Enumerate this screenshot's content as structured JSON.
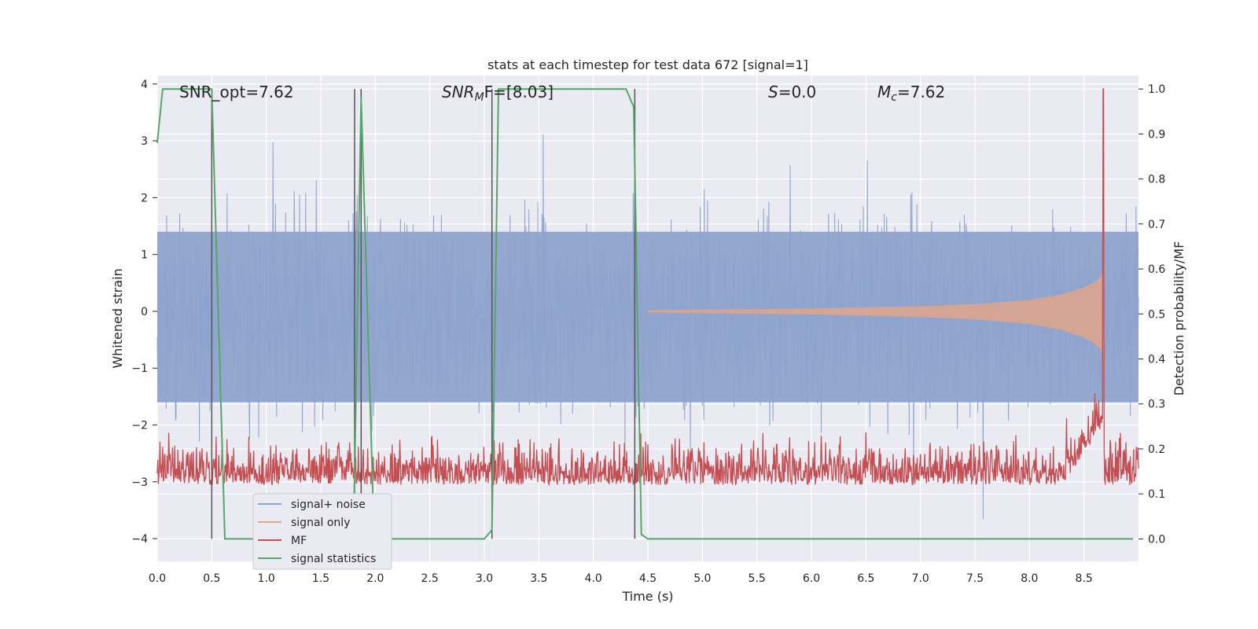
{
  "chart_data": {
    "type": "line",
    "title": "stats at each timestep for test data 672 [signal=1]",
    "xlabel": "Time (s)",
    "ylabel": "Whitened strain",
    "ylabel_right": "Detection probability/MF",
    "xlim": [
      0.0,
      9.0
    ],
    "ylim": [
      -4.4,
      4.15
    ],
    "ylim_right": [
      -0.05,
      1.03
    ],
    "x_ticks": [
      "0.0",
      "0.5",
      "1.0",
      "1.5",
      "2.0",
      "2.5",
      "3.0",
      "3.5",
      "4.0",
      "4.5",
      "5.0",
      "5.5",
      "6.0",
      "6.5",
      "7.0",
      "7.5",
      "8.0",
      "8.5"
    ],
    "y_ticks": [
      "4",
      "3",
      "2",
      "1",
      "0",
      "−1",
      "−2",
      "−3",
      "−4"
    ],
    "y_ticks_right": [
      "1.0",
      "0.9",
      "0.8",
      "0.7",
      "0.6",
      "0.5",
      "0.4",
      "0.3",
      "0.2",
      "0.1",
      "0.0"
    ],
    "grid": true,
    "legend_position": "lower-left",
    "annotations": {
      "snr_opt": "SNR_opt=7.62",
      "snr_mf_base": "SNR",
      "snr_mf_sub": "M",
      "snr_mf_rest": "F=[8.03]",
      "s": "=0.0",
      "s_var": "S",
      "mc_var": "M",
      "mc_sub": "c",
      "mc": "=7.62"
    },
    "series": [
      {
        "name": "signal+ noise",
        "color": "#8ea3cc",
        "description_level": "noise amplitude approx ±2, peaks to ±3.8"
      },
      {
        "name": "signal only",
        "color": "#e0a58a"
      },
      {
        "name": "MF",
        "color": "#c44e52"
      },
      {
        "name": "signal statistics",
        "color": "#55a868"
      }
    ],
    "signal_statistics": {
      "x": [
        0.0,
        0.05,
        0.5,
        0.62,
        1.8,
        1.87,
        1.99,
        2.0,
        3.0,
        3.07,
        3.13,
        4.3,
        4.37,
        4.44,
        4.5,
        8.95
      ],
      "y": [
        0.88,
        1.0,
        1.0,
        0.0,
        0.0,
        0.98,
        0.0,
        0.0,
        0.0,
        0.02,
        1.0,
        1.0,
        0.96,
        0.01,
        0.0,
        0.0
      ]
    },
    "detection_markers": [
      0.5,
      1.81,
      1.87,
      3.07,
      4.38
    ],
    "signal_only_envelope": {
      "x": [
        4.5,
        5.0,
        5.5,
        6.0,
        6.5,
        7.0,
        7.5,
        8.0,
        8.3,
        8.5,
        8.6,
        8.65,
        8.68
      ],
      "y": [
        0.02,
        0.03,
        0.04,
        0.05,
        0.07,
        0.09,
        0.13,
        0.2,
        0.3,
        0.42,
        0.52,
        0.6,
        0.75
      ]
    },
    "mf_level": {
      "mean": 0.14,
      "spread": 0.12,
      "peak_time": 8.68,
      "peak_value": 1.0
    }
  },
  "legend": {
    "items": [
      "signal+ noise",
      "signal only",
      "MF",
      "signal statistics"
    ]
  }
}
